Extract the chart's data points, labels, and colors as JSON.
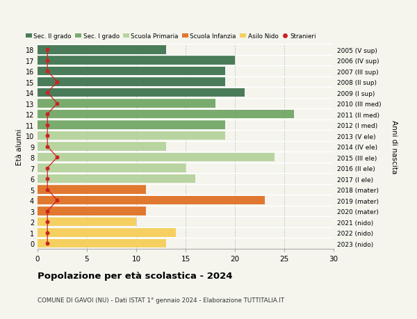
{
  "ages": [
    18,
    17,
    16,
    15,
    14,
    13,
    12,
    11,
    10,
    9,
    8,
    7,
    6,
    5,
    4,
    3,
    2,
    1,
    0
  ],
  "values": [
    13,
    20,
    19,
    19,
    21,
    18,
    26,
    19,
    19,
    13,
    24,
    15,
    16,
    11,
    23,
    11,
    10,
    14,
    13
  ],
  "stranieri_x": [
    1,
    1,
    1,
    2,
    1,
    2,
    1,
    1,
    1,
    1,
    2,
    1,
    1,
    1,
    2,
    1,
    1,
    1,
    1
  ],
  "bar_colors": [
    "#4a7c59",
    "#4a7c59",
    "#4a7c59",
    "#4a7c59",
    "#4a7c59",
    "#7aab6e",
    "#7aab6e",
    "#7aab6e",
    "#b8d4a0",
    "#b8d4a0",
    "#b8d4a0",
    "#b8d4a0",
    "#b8d4a0",
    "#e07830",
    "#e07830",
    "#e07830",
    "#f5d060",
    "#f5d060",
    "#f5d060"
  ],
  "right_labels": [
    "2005 (V sup)",
    "2006 (IV sup)",
    "2007 (III sup)",
    "2008 (II sup)",
    "2009 (I sup)",
    "2010 (III med)",
    "2011 (II med)",
    "2012 (I med)",
    "2013 (V ele)",
    "2014 (IV ele)",
    "2015 (III ele)",
    "2016 (II ele)",
    "2017 (I ele)",
    "2018 (mater)",
    "2019 (mater)",
    "2020 (mater)",
    "2021 (nido)",
    "2022 (nido)",
    "2023 (nido)"
  ],
  "legend_labels": [
    "Sec. II grado",
    "Sec. I grado",
    "Scuola Primaria",
    "Scuola Infanzia",
    "Asilo Nido",
    "Stranieri"
  ],
  "legend_colors": [
    "#4a7c59",
    "#7aab6e",
    "#b8d4a0",
    "#e07830",
    "#f5d060",
    "#cc2222"
  ],
  "stranieri_color": "#cc2222",
  "ylabel": "Età alunni",
  "right_ylabel": "Anni di nascita",
  "title": "Popolazione per età scolastica - 2024",
  "subtitle": "COMUNE DI GAVOI (NU) - Dati ISTAT 1° gennaio 2024 - Elaborazione TUTTITALIA.IT",
  "xlim": [
    0,
    30
  ],
  "xticks": [
    0,
    5,
    10,
    15,
    20,
    25,
    30
  ],
  "background_color": "#f5f5ee"
}
